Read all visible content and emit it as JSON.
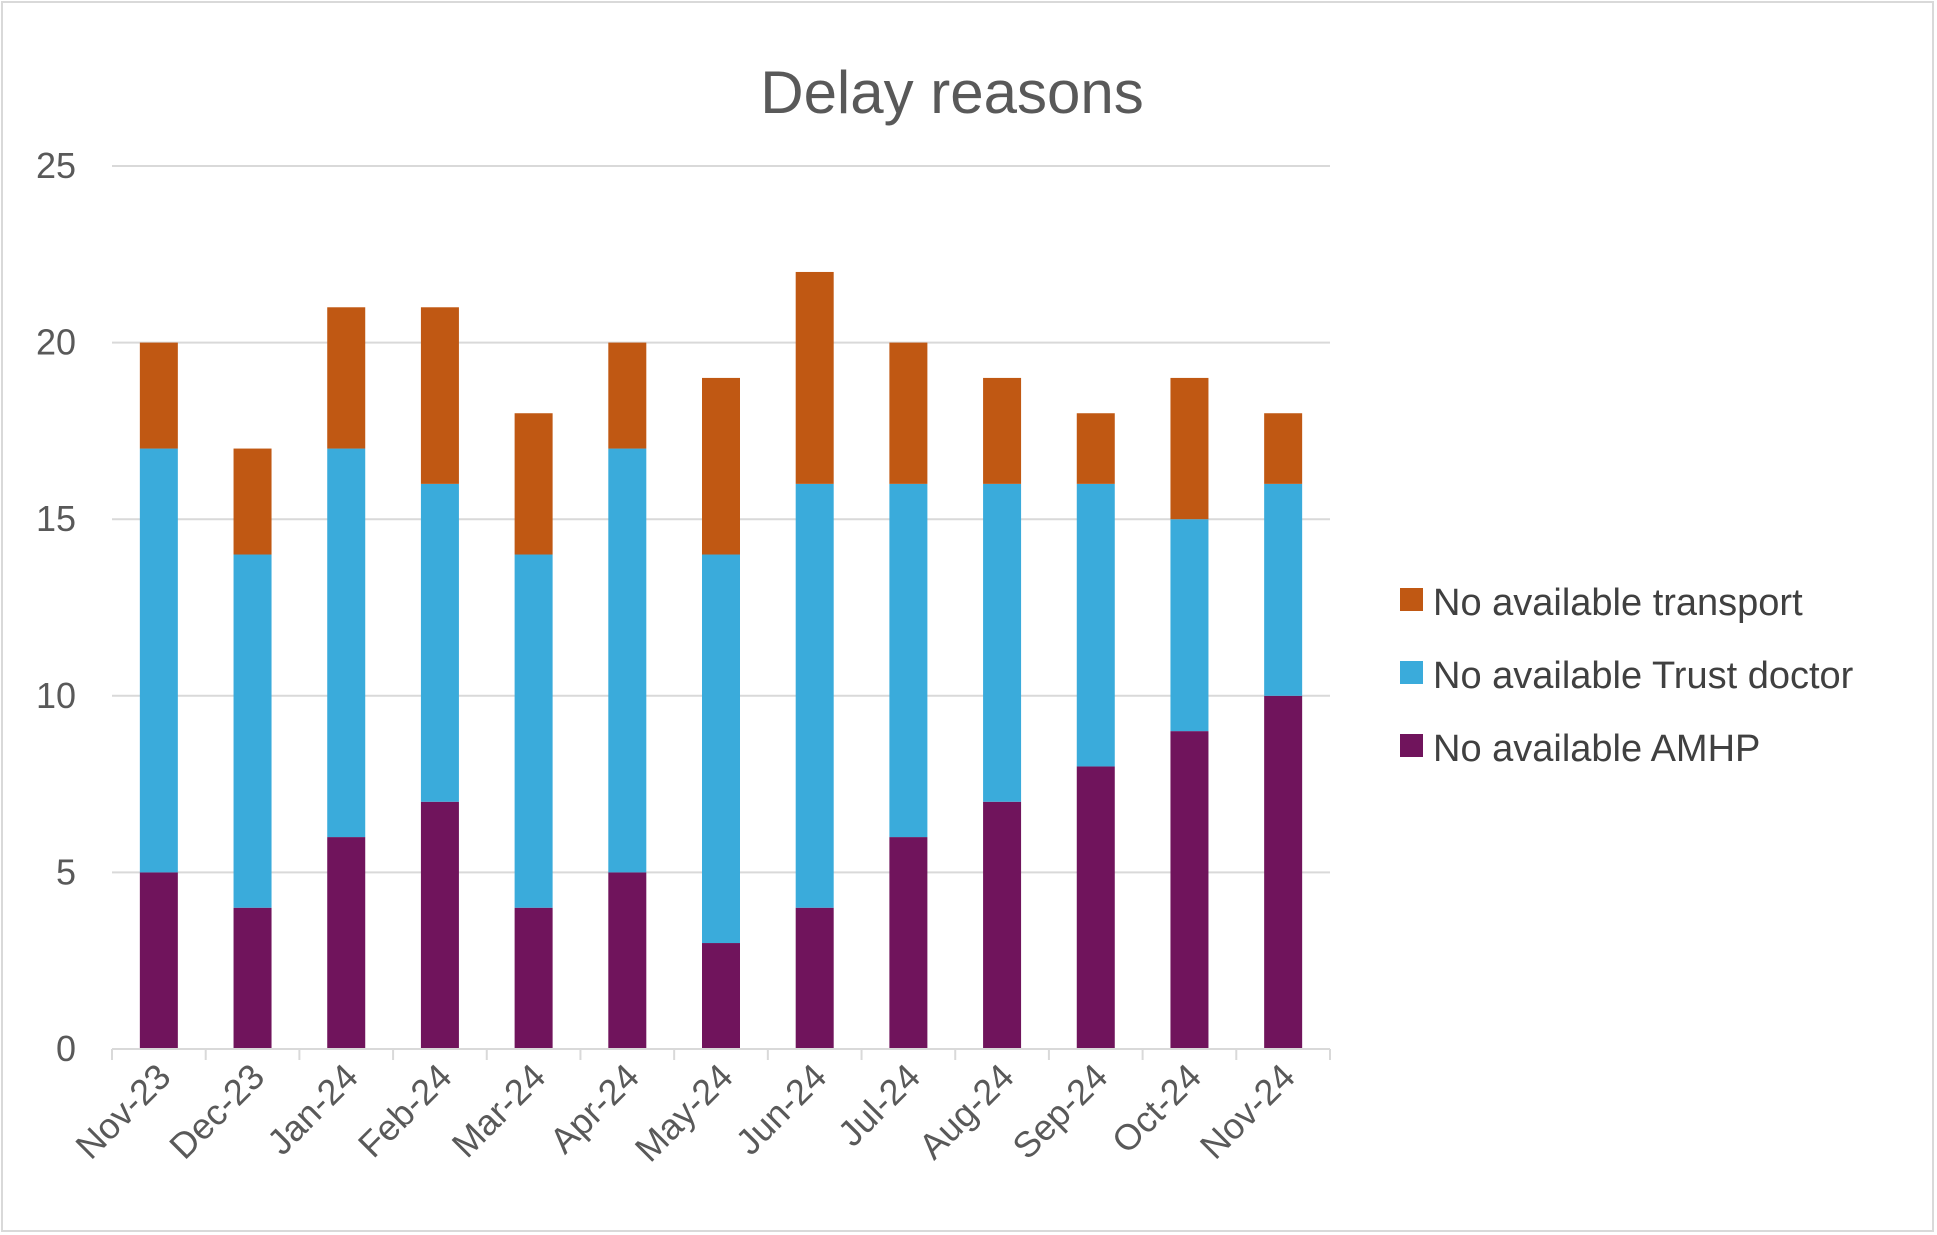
{
  "chart_data": {
    "type": "bar",
    "stacked": true,
    "title": "Delay reasons",
    "xlabel": "",
    "ylabel": "",
    "ylim": [
      0,
      25
    ],
    "yticks": [
      0,
      5,
      10,
      15,
      20,
      25
    ],
    "grid": true,
    "legend_position": "right",
    "categories": [
      "Nov-23",
      "Dec-23",
      "Jan-24",
      "Feb-24",
      "Mar-24",
      "Apr-24",
      "May-24",
      "Jun-24",
      "Jul-24",
      "Aug-24",
      "Sep-24",
      "Oct-24",
      "Nov-24"
    ],
    "series": [
      {
        "name": "No available AMHP",
        "color": "#70145C",
        "values": [
          5,
          4,
          6,
          7,
          4,
          5,
          3,
          4,
          6,
          7,
          8,
          9,
          10
        ]
      },
      {
        "name": "No available Trust doctor",
        "color": "#3AABDB",
        "values": [
          12,
          10,
          11,
          9,
          10,
          12,
          11,
          12,
          10,
          9,
          8,
          6,
          6
        ]
      },
      {
        "name": "No available transport",
        "color": "#C05813",
        "values": [
          3,
          3,
          4,
          5,
          4,
          3,
          5,
          6,
          4,
          3,
          2,
          4,
          2
        ]
      }
    ],
    "legend_order": [
      "No available transport",
      "No available Trust doctor",
      "No available AMHP"
    ]
  }
}
